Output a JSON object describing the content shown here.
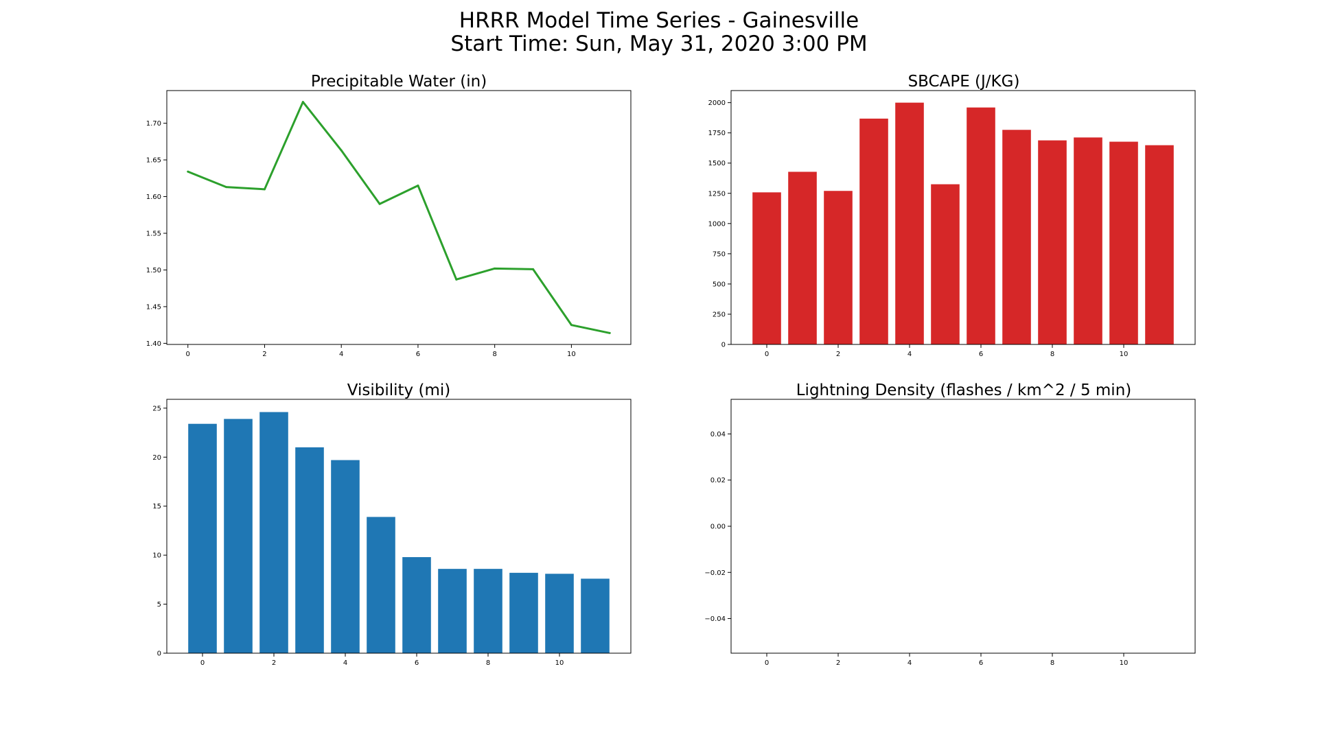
{
  "figure": {
    "title_line1": "HRRR Model Time Series - Gainesville",
    "title_line2": "Start Time: Sun, May 31, 2020 3:00 PM"
  },
  "chart_data": [
    {
      "type": "line",
      "title": "Precipitable Water (in)",
      "xlabel": "",
      "ylabel": "",
      "x": [
        0,
        1,
        2,
        3,
        4,
        5,
        6,
        7,
        8,
        9,
        10,
        11
      ],
      "values": [
        1.634,
        1.613,
        1.61,
        1.729,
        1.663,
        1.59,
        1.615,
        1.487,
        1.502,
        1.501,
        1.425,
        1.414
      ],
      "color": "#2ca02c",
      "xlim": [
        -0.55,
        11.55
      ],
      "ylim": [
        1.3985,
        1.7445
      ],
      "xticks": [
        0,
        2,
        4,
        6,
        8,
        10
      ],
      "xtick_labels": [
        "0",
        "2",
        "4",
        "6",
        "8",
        "10"
      ],
      "yticks": [
        1.4,
        1.45,
        1.5,
        1.55,
        1.6,
        1.65,
        1.7
      ],
      "ytick_labels": [
        "1.40",
        "1.45",
        "1.50",
        "1.55",
        "1.60",
        "1.65",
        "1.70"
      ],
      "grid": false,
      "legend": "none"
    },
    {
      "type": "bar",
      "title": "SBCAPE (J/KG)",
      "xlabel": "",
      "ylabel": "",
      "x": [
        0,
        1,
        2,
        3,
        4,
        5,
        6,
        7,
        8,
        9,
        10,
        11
      ],
      "values": [
        1258,
        1428,
        1270,
        1868,
        2000,
        1325,
        1960,
        1775,
        1688,
        1712,
        1677,
        1648
      ],
      "color": "#d62728",
      "bar_width": 0.8,
      "xlim": [
        -1.0,
        12.0
      ],
      "ylim": [
        0,
        2100
      ],
      "xticks": [
        0,
        2,
        4,
        6,
        8,
        10
      ],
      "xtick_labels": [
        "0",
        "2",
        "4",
        "6",
        "8",
        "10"
      ],
      "yticks": [
        0,
        250,
        500,
        750,
        1000,
        1250,
        1500,
        1750,
        2000
      ],
      "ytick_labels": [
        "0",
        "250",
        "500",
        "750",
        "1000",
        "1250",
        "1500",
        "1750",
        "2000"
      ],
      "grid": false,
      "legend": "none"
    },
    {
      "type": "bar",
      "title": "Visibility (mi)",
      "xlabel": "",
      "ylabel": "",
      "x": [
        0,
        1,
        2,
        3,
        4,
        5,
        6,
        7,
        8,
        9,
        10,
        11
      ],
      "values": [
        23.4,
        23.9,
        24.6,
        21.0,
        19.7,
        13.9,
        9.8,
        8.6,
        8.6,
        8.2,
        8.1,
        7.6
      ],
      "color": "#1f77b4",
      "bar_width": 0.8,
      "xlim": [
        -1.0,
        12.0
      ],
      "ylim": [
        0,
        25.9
      ],
      "xticks": [
        0,
        2,
        4,
        6,
        8,
        10
      ],
      "xtick_labels": [
        "0",
        "2",
        "4",
        "6",
        "8",
        "10"
      ],
      "yticks": [
        0,
        5,
        10,
        15,
        20,
        25
      ],
      "ytick_labels": [
        "0",
        "5",
        "10",
        "15",
        "20",
        "25"
      ],
      "grid": false,
      "legend": "none"
    },
    {
      "type": "bar",
      "title": "Lightning Density (flashes / km^2 / 5 min)",
      "xlabel": "",
      "ylabel": "",
      "x": [
        0,
        1,
        2,
        3,
        4,
        5,
        6,
        7,
        8,
        9,
        10,
        11
      ],
      "values": [
        0,
        0,
        0,
        0,
        0,
        0,
        0,
        0,
        0,
        0,
        0,
        0
      ],
      "color": "#1f77b4",
      "bar_width": 0.8,
      "xlim": [
        -1.0,
        12.0
      ],
      "ylim": [
        -0.055,
        0.055
      ],
      "xticks": [
        0,
        2,
        4,
        6,
        8,
        10
      ],
      "xtick_labels": [
        "0",
        "2",
        "4",
        "6",
        "8",
        "10"
      ],
      "yticks": [
        -0.04,
        -0.02,
        0.0,
        0.02,
        0.04
      ],
      "ytick_labels": [
        "−0.04",
        "−0.02",
        "0.00",
        "0.02",
        "0.04"
      ],
      "grid": false,
      "legend": "none"
    }
  ]
}
